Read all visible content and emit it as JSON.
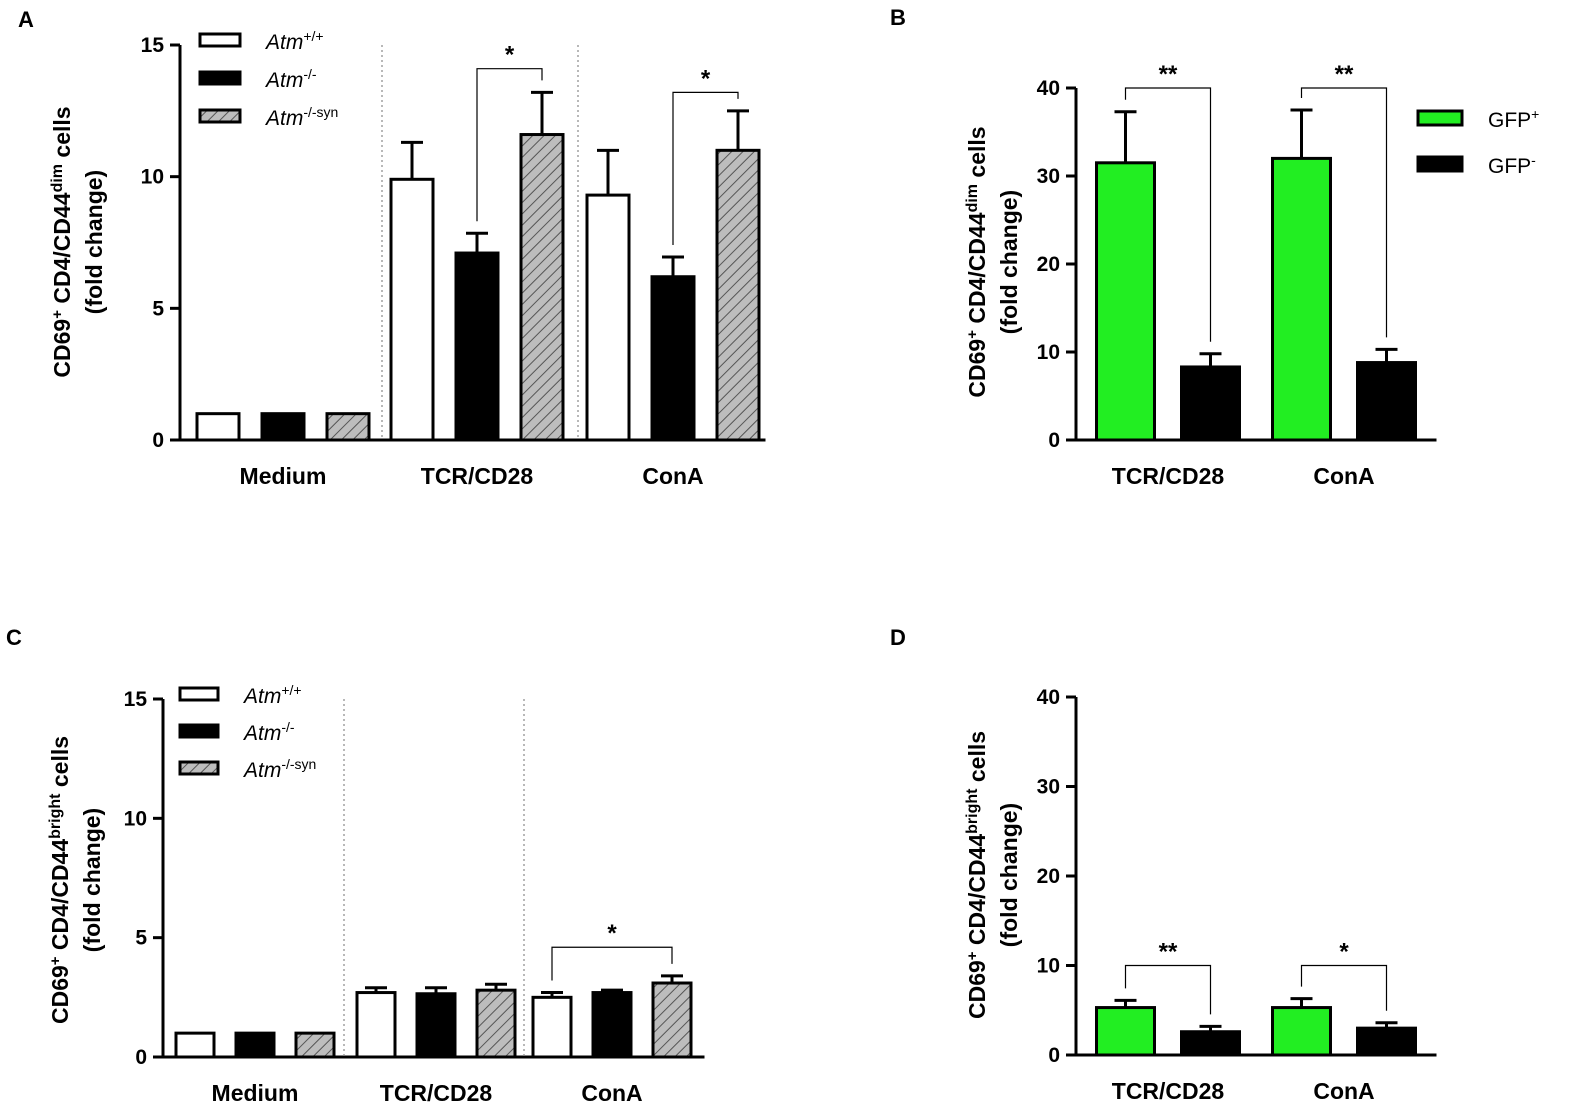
{
  "colors": {
    "white": "#ffffff",
    "black": "#000000",
    "hatch": "#bdbdbd",
    "green": "#22ee22",
    "sep": "#888888"
  },
  "chart_data": [
    {
      "panel": "A",
      "type": "bar",
      "title": "",
      "xlabel": "",
      "ylabel_parts": [
        "CD69",
        "+",
        " CD4/CD44",
        "dim",
        " cells",
        "(fold change)"
      ],
      "ylim": [
        0,
        15
      ],
      "yticks": [
        0,
        5,
        10,
        15
      ],
      "categories": [
        "Medium",
        "TCR/CD28",
        "ConA"
      ],
      "legend": [
        {
          "base": "Atm",
          "sup": "+/+",
          "style": "white"
        },
        {
          "base": "Atm",
          "sup": "-/-",
          "style": "black"
        },
        {
          "base": "Atm",
          "sup": "-/-syn",
          "style": "hatch"
        }
      ],
      "series": [
        {
          "name": "Atm+/+",
          "style": "white",
          "values": [
            1.0,
            9.9,
            9.3
          ],
          "errors": [
            0,
            1.4,
            1.7
          ]
        },
        {
          "name": "Atm-/-",
          "style": "black",
          "values": [
            1.0,
            7.1,
            6.2
          ],
          "errors": [
            0,
            0.75,
            0.75
          ]
        },
        {
          "name": "Atm-/-syn",
          "style": "hatch",
          "values": [
            1.0,
            11.6,
            11.0
          ],
          "errors": [
            0,
            1.6,
            1.5
          ]
        }
      ],
      "separators": true,
      "significance": [
        {
          "cat": 1,
          "from": 1,
          "to": 2,
          "height": 14.1,
          "label": "*"
        },
        {
          "cat": 2,
          "from": 1,
          "to": 2,
          "height": 13.2,
          "label": "*"
        }
      ]
    },
    {
      "panel": "B",
      "type": "bar",
      "title": "",
      "xlabel": "",
      "ylabel_parts": [
        "CD69",
        "+",
        " CD4/CD44",
        "dim",
        " cells",
        "(fold change)"
      ],
      "ylim": [
        0,
        40
      ],
      "yticks": [
        0,
        10,
        20,
        30,
        40
      ],
      "categories": [
        "TCR/CD28",
        "ConA"
      ],
      "legend": [
        {
          "base": "GFP",
          "sup": "+",
          "style": "green"
        },
        {
          "base": "GFP",
          "sup": "-",
          "style": "black"
        }
      ],
      "series": [
        {
          "name": "GFP+",
          "style": "green",
          "values": [
            31.5,
            32.0
          ],
          "errors": [
            5.8,
            5.5
          ]
        },
        {
          "name": "GFP-",
          "style": "black",
          "values": [
            8.3,
            8.8
          ],
          "errors": [
            1.5,
            1.5
          ]
        }
      ],
      "separators": false,
      "significance": [
        {
          "cat": 0,
          "from": 0,
          "to": 1,
          "height": 40.0,
          "label": "**"
        },
        {
          "cat": 1,
          "from": 0,
          "to": 1,
          "height": 40.0,
          "label": "**"
        }
      ]
    },
    {
      "panel": "C",
      "type": "bar",
      "title": "",
      "xlabel": "",
      "ylabel_parts": [
        "CD69",
        "+",
        " CD4/CD44",
        "bright",
        " cells",
        "(fold change)"
      ],
      "ylim": [
        0,
        15
      ],
      "yticks": [
        0,
        5,
        10,
        15
      ],
      "categories": [
        "Medium",
        "TCR/CD28",
        "ConA"
      ],
      "legend": [
        {
          "base": "Atm",
          "sup": "+/+",
          "style": "white"
        },
        {
          "base": "Atm",
          "sup": "-/-",
          "style": "black"
        },
        {
          "base": "Atm",
          "sup": "-/-syn",
          "style": "hatch"
        }
      ],
      "series": [
        {
          "name": "Atm+/+",
          "style": "white",
          "values": [
            1.0,
            2.7,
            2.5
          ],
          "errors": [
            0,
            0.2,
            0.2
          ]
        },
        {
          "name": "Atm-/-",
          "style": "black",
          "values": [
            1.0,
            2.65,
            2.7
          ],
          "errors": [
            0,
            0.25,
            0.1
          ]
        },
        {
          "name": "Atm-/-syn",
          "style": "hatch",
          "values": [
            1.0,
            2.8,
            3.1
          ],
          "errors": [
            0,
            0.25,
            0.3
          ]
        }
      ],
      "separators": true,
      "significance": [
        {
          "cat": 2,
          "from": 0,
          "to": 2,
          "height": 4.6,
          "label": "*"
        }
      ]
    },
    {
      "panel": "D",
      "type": "bar",
      "title": "",
      "xlabel": "",
      "ylabel_parts": [
        "CD69",
        "+",
        " CD4/CD44",
        "bright",
        " cells",
        "(fold change)"
      ],
      "ylim": [
        0,
        40
      ],
      "yticks": [
        0,
        10,
        20,
        30,
        40
      ],
      "categories": [
        "TCR/CD28",
        "ConA"
      ],
      "legend": [],
      "series": [
        {
          "name": "GFP+",
          "style": "green",
          "values": [
            5.3,
            5.3
          ],
          "errors": [
            0.8,
            1.0
          ]
        },
        {
          "name": "GFP-",
          "style": "black",
          "values": [
            2.6,
            3.0
          ],
          "errors": [
            0.6,
            0.6
          ]
        }
      ],
      "separators": false,
      "significance": [
        {
          "cat": 0,
          "from": 0,
          "to": 1,
          "height": 10.0,
          "label": "**"
        },
        {
          "cat": 1,
          "from": 0,
          "to": 1,
          "height": 10.0,
          "label": "*"
        }
      ]
    }
  ]
}
